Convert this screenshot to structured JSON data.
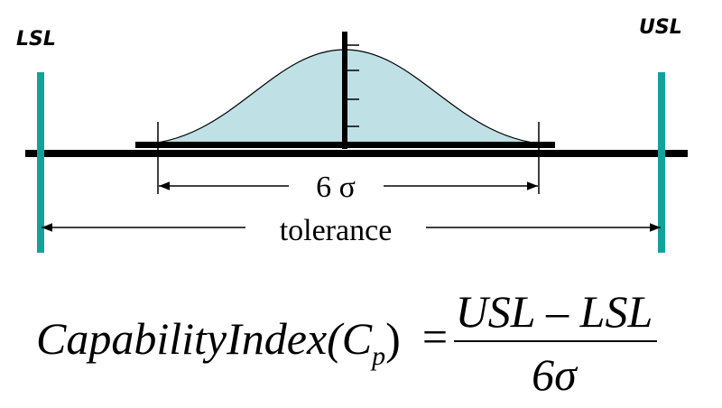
{
  "diagram": {
    "lsl_label": "LSL",
    "usl_label": "USL",
    "spread_label": "6 σ",
    "tolerance_label": "tolerance",
    "formula": {
      "left": "CapabilityIndex(C",
      "subscript": "p",
      "close": ")",
      "equals": "=",
      "numerator": "USL – LSL",
      "denominator": "6σ"
    }
  }
}
